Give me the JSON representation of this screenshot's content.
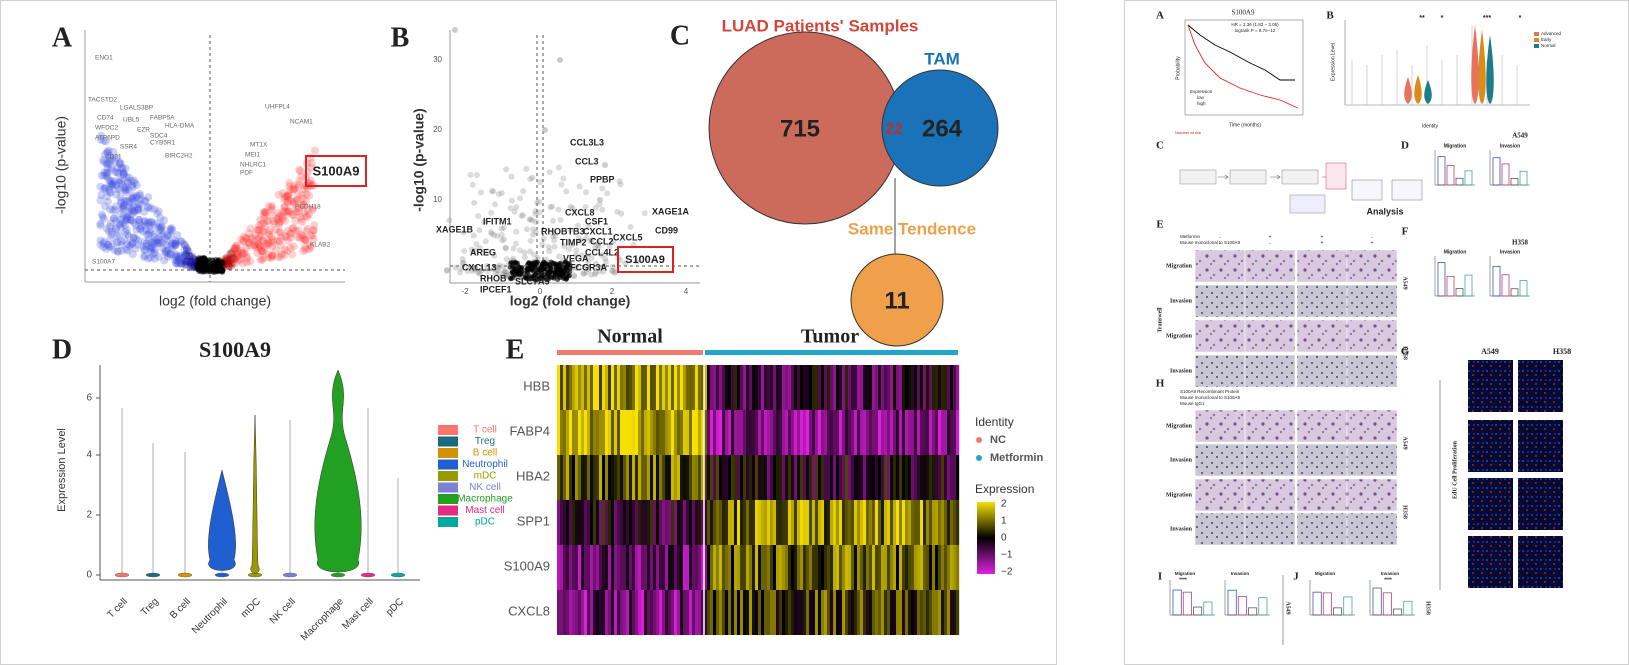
{
  "left_figure": {
    "panel_a": {
      "label": "A",
      "x_label": "log2 (fold change)",
      "y_label": "-log10 (p-value)",
      "highlight": "S100A9",
      "genes": [
        "ENO1",
        "TACSTD2",
        "LGALS3BP",
        "CD74",
        "UBL5",
        "FABP5A",
        "HLA-DMA",
        "WFDC2",
        "EZR",
        "SDC4",
        "ATP6PD",
        "CYB5R1",
        "SSR4",
        "BIRC2H2",
        "CD81",
        "UHFPL4",
        "NCAM1",
        "MT1X",
        "MEI1",
        "NHLRC1",
        "PDF",
        "PCDH18",
        "KLAB2",
        "S100A7"
      ]
    },
    "panel_b": {
      "label": "B",
      "x_label": "log2 (fold change)",
      "y_label": "-log10 (p-value)",
      "highlight": "S100A9",
      "x_ticks": [
        "-2",
        "0",
        "2",
        "4"
      ],
      "y_ticks": [
        "30",
        "20",
        "10"
      ],
      "genes": [
        "IFITM1",
        "XAGE1B",
        "AREG",
        "CXCL13",
        "RHOB",
        "IPCEF1",
        "SLC7A5",
        "CCL3L3",
        "CCL3",
        "PPBP",
        "CXCL8",
        "CSF1",
        "RHOBTB3",
        "CXCL1",
        "CCL2",
        "TIMP2",
        "CCL4L2",
        "VEGA",
        "FCGR3A",
        "CXCL5",
        "XAGE1A",
        "CD99"
      ]
    },
    "panel_c": {
      "label": "C",
      "sets": [
        {
          "name": "LUAD Patients' Samples",
          "count": "715"
        },
        {
          "name": "TAM",
          "count": "264"
        },
        {
          "name": "Same Tendence",
          "count": "11"
        }
      ],
      "overlap": "22"
    },
    "panel_d": {
      "label": "D",
      "title": "S100A9",
      "y_label": "Expression Level",
      "y_ticks": [
        "0",
        "2",
        "4",
        "6"
      ],
      "cell_types": [
        "T cell",
        "Treg",
        "B cell",
        "Neutrophil",
        "mDC",
        "NK cell",
        "Macrophage",
        "Mast cell",
        "pDC"
      ]
    },
    "panel_e": {
      "label": "E",
      "groups": [
        "Normal",
        "Tumor"
      ],
      "genes": [
        "HBB",
        "FABP4",
        "HBA2",
        "SPP1",
        "S100A9",
        "CXCL8"
      ],
      "identity_title": "Identity",
      "identity": [
        "NC",
        "Metformin"
      ],
      "expression_title": "Expression",
      "expression_ticks": [
        "2",
        "1",
        "0",
        "−1",
        "−2"
      ]
    }
  },
  "right_figure": {
    "panel_a": {
      "label": "A",
      "title": "S100A9",
      "hr": "HR = 2.36 (1.83 − 3.05)",
      "p": "logrank P = 8.7e−12",
      "x_label": "Time (months)",
      "y_label": "Probability",
      "legend_title": "Expression",
      "legend": [
        "low",
        "high"
      ],
      "risk": "Number at risk"
    },
    "panel_b": {
      "label": "B",
      "y_label": "Expression Level",
      "x_label": "Identity",
      "legend": [
        "Advanced",
        "Early",
        "Normal"
      ],
      "stars": [
        "**",
        "*",
        "***",
        "*"
      ]
    },
    "panel_c": {
      "label": "C",
      "step": "Analysis"
    },
    "panel_d": {
      "label": "D",
      "cell": "A549",
      "assays": [
        "Migration",
        "Invasion"
      ]
    },
    "panel_e": {
      "label": "E",
      "conditions": [
        "Metformin",
        "Mouse monoclonal to S100A9"
      ],
      "signs": [
        [
          "-",
          "+",
          "+",
          "-"
        ],
        [
          "-",
          "-",
          "+",
          "+"
        ]
      ],
      "rows": [
        "Migration",
        "Invasion",
        "Migration",
        "Invasion"
      ],
      "side": "Transwell",
      "cells": [
        "A549",
        "H358"
      ]
    },
    "panel_f": {
      "label": "F",
      "cell": "H358",
      "assays": [
        "Migration",
        "Invasion"
      ]
    },
    "panel_g": {
      "label": "G",
      "cells": [
        "A549",
        "H358"
      ],
      "side": "EdU Cell Proliferation"
    },
    "panel_h": {
      "label": "H",
      "conditions": [
        "S100A9 Recombinant Protein",
        "Mouse monoclonal to S100A9",
        "Mouse IgG1"
      ],
      "rows": [
        "Migration",
        "Invasion",
        "Migration",
        "Invasion"
      ],
      "cells": [
        "A549",
        "H358"
      ]
    },
    "panel_i": {
      "label": "I",
      "assays": [
        "Migration",
        "Invasion"
      ],
      "stars": "****",
      "cell": "A549"
    },
    "panel_j": {
      "label": "J",
      "assays": [
        "Migration",
        "Invasion"
      ],
      "stars": "****",
      "cell": "H358"
    }
  }
}
